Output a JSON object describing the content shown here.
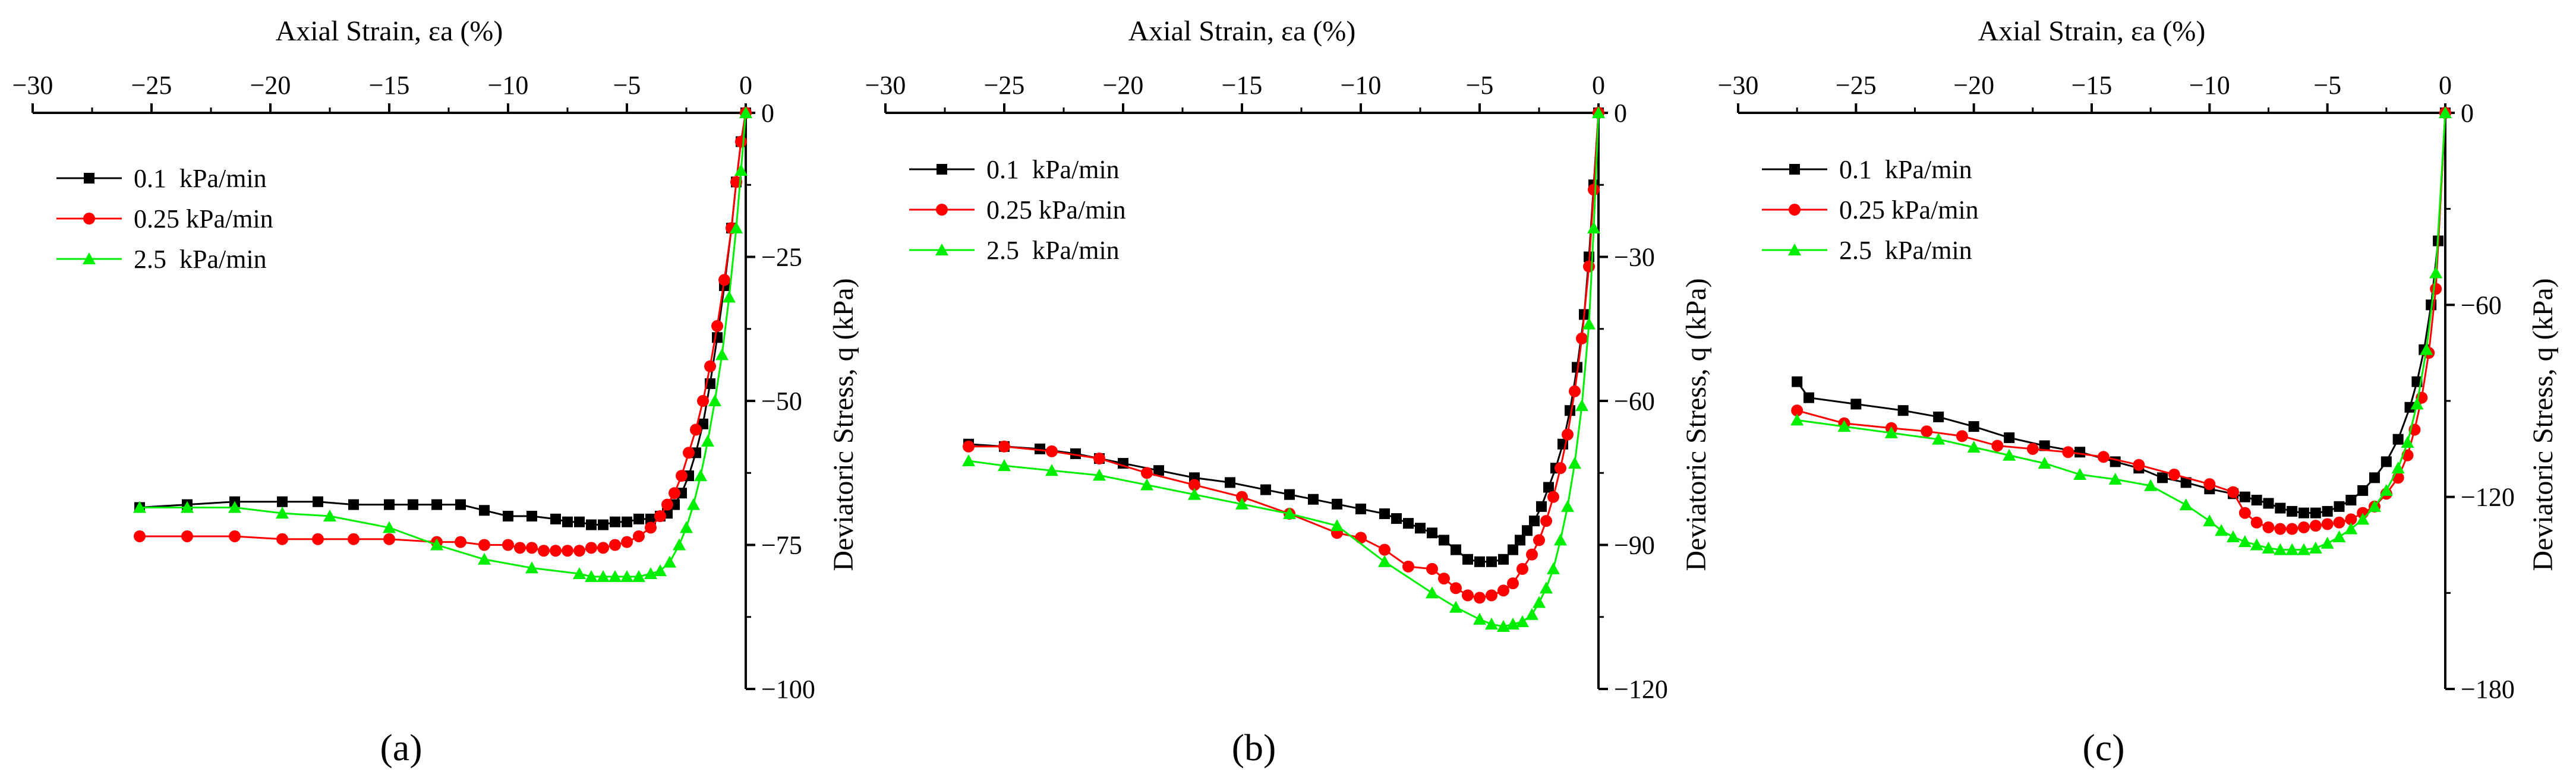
{
  "colors": {
    "0.1 kPa/min": "#000000",
    "0.25 kPa/min": "#ff0000",
    "2.5 kPa/min": "#00ee00",
    "axis": "#000000"
  },
  "chart_data": [
    {
      "type": "line",
      "panel_label": "(a)",
      "xlabel": "Axial Strain, εa (%)",
      "ylabel": "Deviatoric Stress, q (kPa)",
      "xlim": [
        -30,
        0
      ],
      "ylim": [
        -100,
        0
      ],
      "xticks": [
        -30,
        -25,
        -20,
        -15,
        -10,
        -5,
        0
      ],
      "yticks": [
        0,
        -25,
        -50,
        -75,
        -100
      ],
      "x_axis_position": "top",
      "y_axis_position": "right",
      "grid": false,
      "legend": "top-left",
      "series": [
        {
          "name": "0.1  kPa/min",
          "marker": "square",
          "x": [
            -25.5,
            -23.5,
            -21.5,
            -19.5,
            -18,
            -16.5,
            -15,
            -14,
            -13,
            -12,
            -11,
            -10,
            -9,
            -8,
            -7.5,
            -7,
            -6.5,
            -6,
            -5.5,
            -5,
            -4.5,
            -4,
            -3.6,
            -3.3,
            -3,
            -2.7,
            -2.4,
            -2.1,
            -1.8,
            -1.5,
            -1.2,
            -0.9,
            -0.6,
            -0.4,
            -0.2,
            0
          ],
          "y": [
            -68.5,
            -68,
            -67.5,
            -67.5,
            -67.5,
            -68,
            -68,
            -68,
            -68,
            -68,
            -69,
            -70,
            -70,
            -70.5,
            -71,
            -71,
            -71.5,
            -71.5,
            -71,
            -71,
            -70.5,
            -70.5,
            -70,
            -69.5,
            -68,
            -66,
            -63,
            -59,
            -54,
            -47,
            -39,
            -30,
            -20,
            -12,
            -5,
            0
          ]
        },
        {
          "name": "0.25 kPa/min",
          "marker": "circle",
          "x": [
            -25.5,
            -23.5,
            -21.5,
            -19.5,
            -18,
            -16.5,
            -15,
            -13,
            -12,
            -11,
            -10,
            -9.5,
            -9,
            -8.5,
            -8,
            -7.5,
            -7,
            -6.5,
            -6,
            -5.5,
            -5,
            -4.5,
            -4,
            -3.6,
            -3.3,
            -3,
            -2.7,
            -2.4,
            -2.1,
            -1.8,
            -1.5,
            -1.2,
            -0.9,
            -0.6,
            -0.4,
            -0.2,
            0
          ],
          "y": [
            -73.5,
            -73.5,
            -73.5,
            -74,
            -74,
            -74,
            -74,
            -74.5,
            -74.5,
            -75,
            -75,
            -75.5,
            -75.5,
            -76,
            -76,
            -76,
            -76,
            -75.5,
            -75.5,
            -75,
            -74.5,
            -73.5,
            -72,
            -70,
            -68,
            -66,
            -63,
            -59,
            -55,
            -50,
            -44,
            -37,
            -29,
            -20,
            -12,
            -5,
            0
          ]
        },
        {
          "name": "2.5  kPa/min",
          "marker": "triangle",
          "x": [
            -25.5,
            -23.5,
            -21.5,
            -19.5,
            -17.5,
            -15,
            -13,
            -11,
            -9,
            -7,
            -6.5,
            -6,
            -5.5,
            -5,
            -4.5,
            -4,
            -3.6,
            -3.2,
            -2.8,
            -2.5,
            -2.2,
            -1.9,
            -1.6,
            -1.3,
            -1,
            -0.7,
            -0.4,
            -0.2,
            0
          ],
          "y": [
            -68.5,
            -68.5,
            -68.5,
            -69.5,
            -70,
            -72,
            -75,
            -77.5,
            -79,
            -80,
            -80.5,
            -80.5,
            -80.5,
            -80.5,
            -80.5,
            -80,
            -79.5,
            -78,
            -75,
            -72,
            -68,
            -63,
            -57,
            -50,
            -42,
            -32,
            -20,
            -10,
            0
          ]
        }
      ]
    },
    {
      "type": "line",
      "panel_label": "(b)",
      "xlabel": "Axial Strain, εa (%)",
      "ylabel": "Deviatoric Stress, q (kPa)",
      "xlim": [
        -30,
        0
      ],
      "ylim": [
        -120,
        0
      ],
      "xticks": [
        -30,
        -25,
        -20,
        -15,
        -10,
        -5,
        0
      ],
      "yticks": [
        0,
        -30,
        -60,
        -90,
        -120
      ],
      "x_axis_position": "top",
      "y_axis_position": "right",
      "grid": false,
      "legend": "top-left",
      "series": [
        {
          "name": "0.1  kPa/min",
          "marker": "square",
          "x": [
            -26.5,
            -25,
            -23.5,
            -22,
            -21,
            -20,
            -18.5,
            -17,
            -15.5,
            -14,
            -13,
            -12,
            -11,
            -10,
            -9,
            -8.5,
            -8,
            -7.5,
            -7,
            -6.5,
            -6,
            -5.5,
            -5,
            -4.5,
            -4,
            -3.6,
            -3.3,
            -3,
            -2.7,
            -2.4,
            -2.1,
            -1.8,
            -1.5,
            -1.2,
            -0.9,
            -0.6,
            -0.4,
            -0.2,
            0
          ],
          "y": [
            -69,
            -69.5,
            -70,
            -71,
            -72,
            -73,
            -74.5,
            -76,
            -77,
            -78.5,
            -79.5,
            -80.5,
            -81.5,
            -82.5,
            -83.5,
            -84.5,
            -85.5,
            -86.5,
            -87.5,
            -89,
            -91,
            -93,
            -93.5,
            -93.5,
            -93,
            -91,
            -89,
            -87,
            -85,
            -82,
            -78,
            -74,
            -69,
            -62,
            -53,
            -42,
            -30,
            -15,
            0
          ]
        },
        {
          "name": "0.25 kPa/min",
          "marker": "circle",
          "x": [
            -26.5,
            -25,
            -23,
            -21,
            -19,
            -17,
            -15,
            -13,
            -11,
            -10,
            -9,
            -8,
            -7,
            -6.5,
            -6,
            -5.5,
            -5,
            -4.5,
            -4,
            -3.6,
            -3.2,
            -2.8,
            -2.5,
            -2.2,
            -1.9,
            -1.6,
            -1.3,
            -1,
            -0.7,
            -0.4,
            -0.2,
            0
          ],
          "y": [
            -69.5,
            -69.5,
            -70.5,
            -72,
            -75,
            -77.5,
            -80,
            -83.5,
            -87.5,
            -88.5,
            -91,
            -94.5,
            -95,
            -97,
            -99,
            -100.5,
            -101,
            -100.5,
            -99.5,
            -98,
            -95,
            -92,
            -89,
            -85,
            -80,
            -74,
            -67,
            -58,
            -47,
            -32,
            -16,
            0
          ]
        },
        {
          "name": "2.5  kPa/min",
          "marker": "triangle",
          "x": [
            -26.5,
            -25,
            -23,
            -21,
            -19,
            -17,
            -15,
            -13,
            -11,
            -9,
            -7,
            -6,
            -5,
            -4.5,
            -4,
            -3.6,
            -3.2,
            -2.8,
            -2.5,
            -2.2,
            -1.9,
            -1.6,
            -1.3,
            -1,
            -0.7,
            -0.4,
            -0.2,
            0
          ],
          "y": [
            -72.5,
            -73.5,
            -74.5,
            -75.5,
            -77.5,
            -79.5,
            -81.5,
            -83.5,
            -86,
            -93.5,
            -100,
            -103,
            -105.5,
            -106.5,
            -107,
            -106.5,
            -106,
            -104.5,
            -102,
            -99,
            -95,
            -89,
            -82,
            -73,
            -61,
            -44,
            -24,
            0
          ]
        }
      ]
    },
    {
      "type": "line",
      "panel_label": "(c)",
      "xlabel": "Axial Strain, εa (%)",
      "ylabel": "Deviatoric Stress, q (kPa)",
      "xlim": [
        -30,
        0
      ],
      "ylim": [
        -180,
        0
      ],
      "xticks": [
        -30,
        -25,
        -20,
        -15,
        -10,
        -5,
        0
      ],
      "yticks": [
        0,
        -60,
        -120,
        -180
      ],
      "x_axis_position": "top",
      "y_axis_position": "right",
      "grid": false,
      "legend": "top-left",
      "series": [
        {
          "name": "0.1  kPa/min",
          "marker": "square",
          "x": [
            -27.5,
            -27,
            -25,
            -23,
            -21.5,
            -20,
            -18.5,
            -17,
            -15.5,
            -14,
            -13,
            -12,
            -11,
            -10,
            -9,
            -8.5,
            -8,
            -7.5,
            -7,
            -6.5,
            -6,
            -5.5,
            -5,
            -4.5,
            -4,
            -3.5,
            -3,
            -2.5,
            -2,
            -1.5,
            -1.2,
            -0.9,
            -0.6,
            -0.3,
            0
          ],
          "y": [
            -84,
            -89,
            -91,
            -93,
            -95,
            -98,
            -101.5,
            -104,
            -106,
            -109,
            -111,
            -114,
            -115.5,
            -117.5,
            -119,
            -120,
            -121,
            -122,
            -123.5,
            -124.5,
            -125,
            -125,
            -124.5,
            -123,
            -121,
            -118,
            -114,
            -109,
            -102,
            -92,
            -84,
            -74,
            -60,
            -40,
            0
          ]
        },
        {
          "name": "0.25 kPa/min",
          "marker": "circle",
          "x": [
            -27.5,
            -25.5,
            -23.5,
            -22,
            -20.5,
            -19,
            -17.5,
            -16,
            -14.5,
            -13,
            -11.5,
            -10,
            -9,
            -8.5,
            -8,
            -7.5,
            -7,
            -6.5,
            -6,
            -5.5,
            -5,
            -4.5,
            -4,
            -3.5,
            -3,
            -2.5,
            -2,
            -1.6,
            -1.3,
            -1,
            -0.7,
            -0.4,
            0
          ],
          "y": [
            -93,
            -97,
            -98.5,
            -99.5,
            -101,
            -104,
            -105,
            -106,
            -107.5,
            -110,
            -113,
            -116,
            -118.5,
            -125,
            -128,
            -129.5,
            -130,
            -130,
            -129.5,
            -129,
            -128.5,
            -128,
            -127,
            -125,
            -123,
            -119,
            -114,
            -107,
            -99,
            -89,
            -75,
            -55,
            0
          ]
        },
        {
          "name": "2.5  kPa/min",
          "marker": "triangle",
          "x": [
            -27.5,
            -25.5,
            -23.5,
            -21.5,
            -20,
            -18.5,
            -17,
            -15.5,
            -14,
            -12.5,
            -11,
            -10,
            -9.5,
            -9,
            -8.5,
            -8,
            -7.5,
            -7,
            -6.5,
            -6,
            -5.5,
            -5,
            -4.5,
            -4,
            -3.5,
            -3,
            -2.5,
            -2,
            -1.6,
            -1.2,
            -0.8,
            -0.4,
            0
          ],
          "y": [
            -96,
            -98,
            -100,
            -102,
            -104.5,
            -107,
            -109.5,
            -113,
            -114.5,
            -116.5,
            -122.5,
            -127.5,
            -130.5,
            -132.5,
            -134,
            -135,
            -136,
            -136.5,
            -136.5,
            -136.5,
            -136,
            -134.5,
            -132.5,
            -130,
            -127,
            -123,
            -118,
            -111,
            -103,
            -91,
            -74,
            -50,
            0
          ]
        }
      ]
    }
  ]
}
